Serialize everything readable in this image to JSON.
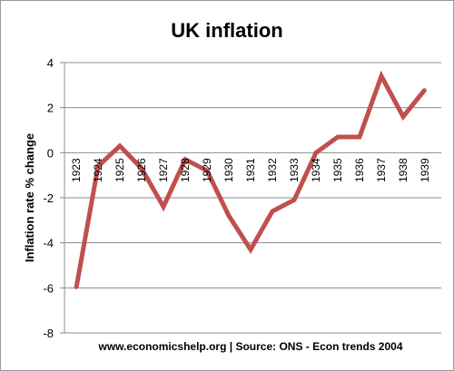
{
  "chart_data": {
    "type": "line",
    "title": "UK inflation",
    "ylabel": "Inflation rate % change",
    "xlabel": "",
    "source_note": "www.economicshelp.org | Source: ONS - Econ trends 2004",
    "x": [
      "1923",
      "1924",
      "1925",
      "1926",
      "1927",
      "1928",
      "1929",
      "1930",
      "1931",
      "1932",
      "1933",
      "1934",
      "1935",
      "1936",
      "1937",
      "1938",
      "1939"
    ],
    "y_tick_labels": [
      "4",
      "2",
      "0",
      "-2",
      "-4",
      "-6",
      "-8"
    ],
    "y_tick_values": [
      4,
      2,
      0,
      -2,
      -4,
      -6,
      -8
    ],
    "ylim": [
      -8,
      4
    ],
    "grid": true,
    "legend": "none",
    "series": [
      {
        "values": [
          -6.0,
          -0.6,
          0.3,
          -0.7,
          -2.4,
          -0.3,
          -0.8,
          -2.8,
          -4.3,
          -2.6,
          -2.1,
          0.0,
          0.7,
          0.7,
          3.4,
          1.6,
          2.8
        ],
        "color": "#c0504d"
      }
    ]
  }
}
